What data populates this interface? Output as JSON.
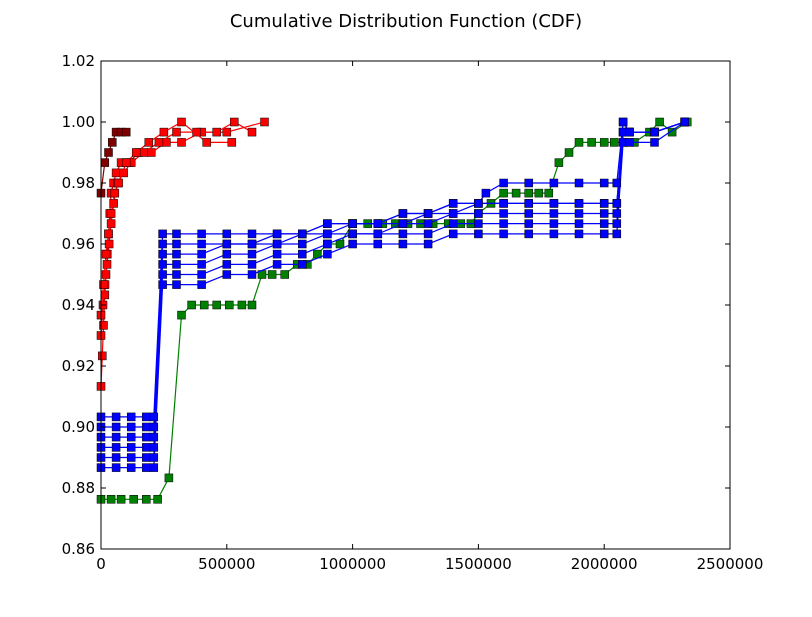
{
  "chart_data": {
    "type": "line",
    "title": "Cumulative Distribution Function (CDF)",
    "xlabel": "",
    "ylabel": "",
    "xlim": [
      0,
      2500000
    ],
    "ylim": [
      0.86,
      1.02
    ],
    "x_ticks": [
      0,
      500000,
      1000000,
      1500000,
      2000000,
      2500000
    ],
    "x_tick_labels": [
      "0",
      "500000",
      "1000000",
      "1500000",
      "2000000",
      "2500000"
    ],
    "y_ticks": [
      0.86,
      0.88,
      0.9,
      0.92,
      0.94,
      0.96,
      0.98,
      1.0,
      1.02
    ],
    "y_tick_labels": [
      "0.86",
      "0.88",
      "0.90",
      "0.92",
      "0.94",
      "0.96",
      "0.98",
      "1.00",
      "1.02"
    ],
    "grid": false,
    "legend": "none",
    "series": [
      {
        "color": "#008000",
        "marker": "square",
        "x": [
          0,
          40000,
          80000,
          130000,
          180000,
          225000,
          270000,
          320000,
          360000,
          410000,
          460000,
          510000,
          560000,
          600000,
          640000,
          680000,
          730000,
          780000,
          820000,
          860000,
          900000,
          950000,
          1000000,
          1060000,
          1120000,
          1170000,
          1220000,
          1270000,
          1320000,
          1380000,
          1430000,
          1470000,
          1500000,
          1550000,
          1600000,
          1650000,
          1700000,
          1740000,
          1780000,
          1820000,
          1860000,
          1900000,
          1950000,
          2000000,
          2040000,
          2080000,
          2120000,
          2180000,
          2220000,
          2270000,
          2330000
        ],
        "y": [
          0.8763,
          0.8763,
          0.8763,
          0.8763,
          0.8763,
          0.8763,
          0.8833,
          0.9367,
          0.94,
          0.94,
          0.94,
          0.94,
          0.94,
          0.94,
          0.95,
          0.95,
          0.95,
          0.9533,
          0.9533,
          0.9567,
          0.96,
          0.96,
          0.9667,
          0.9667,
          0.9667,
          0.9667,
          0.9667,
          0.9667,
          0.9667,
          0.9667,
          0.9667,
          0.9667,
          0.97,
          0.9733,
          0.9767,
          0.9767,
          0.9767,
          0.9767,
          0.9767,
          0.9867,
          0.99,
          0.9933,
          0.9933,
          0.9933,
          0.9933,
          0.9933,
          0.9933,
          0.9967,
          1.0,
          0.9967,
          1.0
        ]
      },
      {
        "color": "#0000ff",
        "marker": "square",
        "x": [
          0,
          60000,
          120000,
          180000,
          210000,
          245000,
          300000,
          400000,
          500000,
          600000,
          700000,
          800000,
          900000,
          1000000,
          1100000,
          1200000,
          1300000,
          1400000,
          1500000,
          1600000,
          1700000,
          1800000,
          1900000,
          2000000,
          2050000,
          2075000,
          2100000,
          2200000,
          2320000
        ],
        "y": [
          0.8867,
          0.8867,
          0.8867,
          0.8867,
          0.8867,
          0.9467,
          0.9467,
          0.9467,
          0.95,
          0.95,
          0.9533,
          0.9533,
          0.9567,
          0.96,
          0.96,
          0.96,
          0.96,
          0.9633,
          0.9633,
          0.9633,
          0.9633,
          0.9633,
          0.9633,
          0.9633,
          0.9633,
          0.9933,
          0.9933,
          0.9933,
          1.0
        ]
      },
      {
        "color": "#0000ff",
        "marker": "square",
        "x": [
          0,
          60000,
          120000,
          180000,
          210000,
          245000,
          300000,
          400000,
          500000,
          600000,
          700000,
          800000,
          900000,
          1000000,
          1100000,
          1200000,
          1300000,
          1400000,
          1500000,
          1600000,
          1700000,
          1800000,
          1900000,
          2000000,
          2050000,
          2075000,
          2100000,
          2200000,
          2320000
        ],
        "y": [
          0.89,
          0.89,
          0.89,
          0.89,
          0.89,
          0.95,
          0.95,
          0.95,
          0.9533,
          0.9533,
          0.9567,
          0.9567,
          0.96,
          0.9633,
          0.9633,
          0.9633,
          0.9633,
          0.9667,
          0.9667,
          0.9667,
          0.9667,
          0.9667,
          0.9667,
          0.9667,
          0.9667,
          0.9967,
          0.9967,
          0.9967,
          1.0
        ]
      },
      {
        "color": "#0000ff",
        "marker": "square",
        "x": [
          0,
          60000,
          120000,
          180000,
          210000,
          245000,
          300000,
          400000,
          500000,
          600000,
          700000,
          800000,
          900000,
          1000000,
          1100000,
          1200000,
          1300000,
          1400000,
          1500000,
          1600000,
          1700000,
          1800000,
          1900000,
          2000000,
          2050000,
          2075000,
          2100000,
          2200000,
          2320000
        ],
        "y": [
          0.8933,
          0.8933,
          0.8933,
          0.8933,
          0.8933,
          0.9533,
          0.9533,
          0.9533,
          0.9567,
          0.9567,
          0.96,
          0.96,
          0.9633,
          0.9633,
          0.9633,
          0.9667,
          0.9667,
          0.97,
          0.97,
          0.97,
          0.97,
          0.97,
          0.97,
          0.97,
          0.97,
          0.9967,
          0.9967,
          0.9967,
          1.0
        ]
      },
      {
        "color": "#0000ff",
        "marker": "square",
        "x": [
          0,
          60000,
          120000,
          180000,
          210000,
          245000,
          300000,
          400000,
          500000,
          600000,
          700000,
          800000,
          900000,
          1000000,
          1100000,
          1200000,
          1300000,
          1400000,
          1500000,
          1600000,
          1700000,
          1800000,
          1900000,
          2000000,
          2050000,
          2075000,
          2100000,
          2200000,
          2320000
        ],
        "y": [
          0.8967,
          0.8967,
          0.8967,
          0.8967,
          0.8967,
          0.9567,
          0.9567,
          0.9567,
          0.96,
          0.96,
          0.96,
          0.9633,
          0.9633,
          0.9667,
          0.9667,
          0.9667,
          0.97,
          0.97,
          0.9733,
          0.9733,
          0.9733,
          0.9733,
          0.9733,
          0.9733,
          0.9733,
          0.9967,
          0.9967,
          0.9967,
          1.0
        ]
      },
      {
        "color": "#0000ff",
        "marker": "square",
        "x": [
          0,
          60000,
          120000,
          180000,
          210000,
          245000,
          300000,
          400000,
          500000,
          600000,
          700000,
          800000,
          900000,
          1000000,
          1100000,
          1200000,
          1300000,
          1400000,
          1500000,
          1600000,
          1700000,
          1800000,
          1900000,
          2000000,
          2050000,
          2075000,
          2100000,
          2200000,
          2320000
        ],
        "y": [
          0.9,
          0.9,
          0.9,
          0.9,
          0.9,
          0.96,
          0.96,
          0.96,
          0.96,
          0.96,
          0.9633,
          0.9633,
          0.9667,
          0.9667,
          0.9667,
          0.97,
          0.97,
          0.9733,
          0.9733,
          0.9733,
          0.9733,
          0.9733,
          0.9733,
          0.9733,
          0.9733,
          1.0,
          0.9967,
          0.9967,
          1.0
        ]
      },
      {
        "color": "#0000ff",
        "marker": "square",
        "x": [
          0,
          60000,
          120000,
          180000,
          210000,
          245000,
          300000,
          400000,
          500000,
          600000,
          700000,
          800000,
          900000,
          1000000,
          1100000,
          1200000,
          1300000,
          1400000,
          1500000,
          1530000,
          1600000,
          1700000,
          1800000,
          1900000,
          2000000,
          2050000,
          2075000,
          2100000,
          2200000,
          2320000
        ],
        "y": [
          0.9033,
          0.9033,
          0.9033,
          0.9033,
          0.9033,
          0.9633,
          0.9633,
          0.9633,
          0.9633,
          0.9633,
          0.9633,
          0.9633,
          0.9667,
          0.9667,
          0.9667,
          0.97,
          0.97,
          0.9733,
          0.9733,
          0.9767,
          0.98,
          0.98,
          0.98,
          0.98,
          0.98,
          0.98,
          1.0,
          0.9967,
          0.9967,
          1.0
        ]
      },
      {
        "color": "#ff0000",
        "marker": "square",
        "x": [
          0,
          5000,
          10000,
          15000,
          20000,
          25000,
          30000,
          35000,
          40000,
          50000,
          60000,
          80000,
          110000,
          150000,
          200000,
          260000,
          320000,
          400000,
          500000,
          650000
        ],
        "y": [
          0.9133,
          0.9233,
          0.9333,
          0.9433,
          0.95,
          0.9567,
          0.9633,
          0.97,
          0.9767,
          0.98,
          0.9833,
          0.9867,
          0.9867,
          0.99,
          0.99,
          0.9933,
          0.9933,
          0.9967,
          0.9967,
          1.0
        ]
      },
      {
        "color": "#ff0000",
        "marker": "square",
        "x": [
          0,
          8000,
          16000,
          24000,
          32000,
          40000,
          50000,
          65000,
          90000,
          120000,
          170000,
          230000,
          300000,
          380000,
          460000,
          530000,
          600000
        ],
        "y": [
          0.93,
          0.94,
          0.9467,
          0.9533,
          0.96,
          0.9667,
          0.9733,
          0.98,
          0.9833,
          0.9867,
          0.99,
          0.9933,
          0.9967,
          0.9967,
          0.9967,
          1.0,
          0.9967
        ]
      },
      {
        "color": "#ff0000",
        "marker": "square",
        "x": [
          0,
          10000,
          20000,
          30000,
          40000,
          55000,
          70000,
          100000,
          140000,
          190000,
          250000,
          320000,
          420000,
          520000
        ],
        "y": [
          0.9367,
          0.9467,
          0.9567,
          0.9633,
          0.97,
          0.9767,
          0.98,
          0.9867,
          0.99,
          0.9933,
          0.9967,
          1.0,
          0.9933,
          0.9933
        ]
      },
      {
        "color": "#800000",
        "marker": "square",
        "x": [
          0,
          15000,
          30000,
          45000,
          60000,
          80000,
          100000
        ],
        "y": [
          0.9767,
          0.9867,
          0.99,
          0.9933,
          0.9967,
          0.9967,
          0.9967
        ]
      }
    ]
  }
}
